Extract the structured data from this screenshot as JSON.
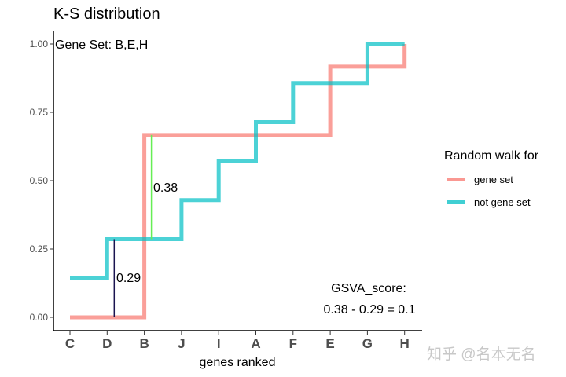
{
  "chart_data": {
    "type": "line",
    "step": true,
    "title": "K-S distribution",
    "xlabel": "genes ranked",
    "ylabel": "",
    "categories": [
      "C",
      "D",
      "B",
      "J",
      "I",
      "A",
      "F",
      "E",
      "G",
      "H"
    ],
    "ylim": [
      0,
      1
    ],
    "yticks": [
      "0.00",
      "0.25",
      "0.50",
      "0.75",
      "1.00"
    ],
    "grid": false,
    "legend": {
      "title": "Random walk for",
      "position": "right"
    },
    "series": [
      {
        "name": "gene set",
        "color": "#F8766D",
        "values": [
          0,
          0,
          0.667,
          0.667,
          0.667,
          0.667,
          0.667,
          0.917,
          0.917,
          1.0
        ]
      },
      {
        "name": "not gene set",
        "color": "#00BFC4",
        "values": [
          0.143,
          0.286,
          0.286,
          0.429,
          0.571,
          0.714,
          0.857,
          0.857,
          1.0,
          1.0
        ]
      }
    ],
    "annotations": {
      "gene_set_label": "Gene Set: B,E,H",
      "max_positive": {
        "label": "0.38",
        "at": "B",
        "from": 0.286,
        "to": 0.667,
        "color": "#66EE55"
      },
      "max_negative": {
        "label": "0.29",
        "at": "D",
        "from": 0,
        "to": 0.286,
        "color": "#1A1450"
      },
      "score_title": "GSVA_score:",
      "score_formula": "0.38 - 0.29 = 0.1"
    }
  },
  "watermark": "知乎 @名本无名"
}
